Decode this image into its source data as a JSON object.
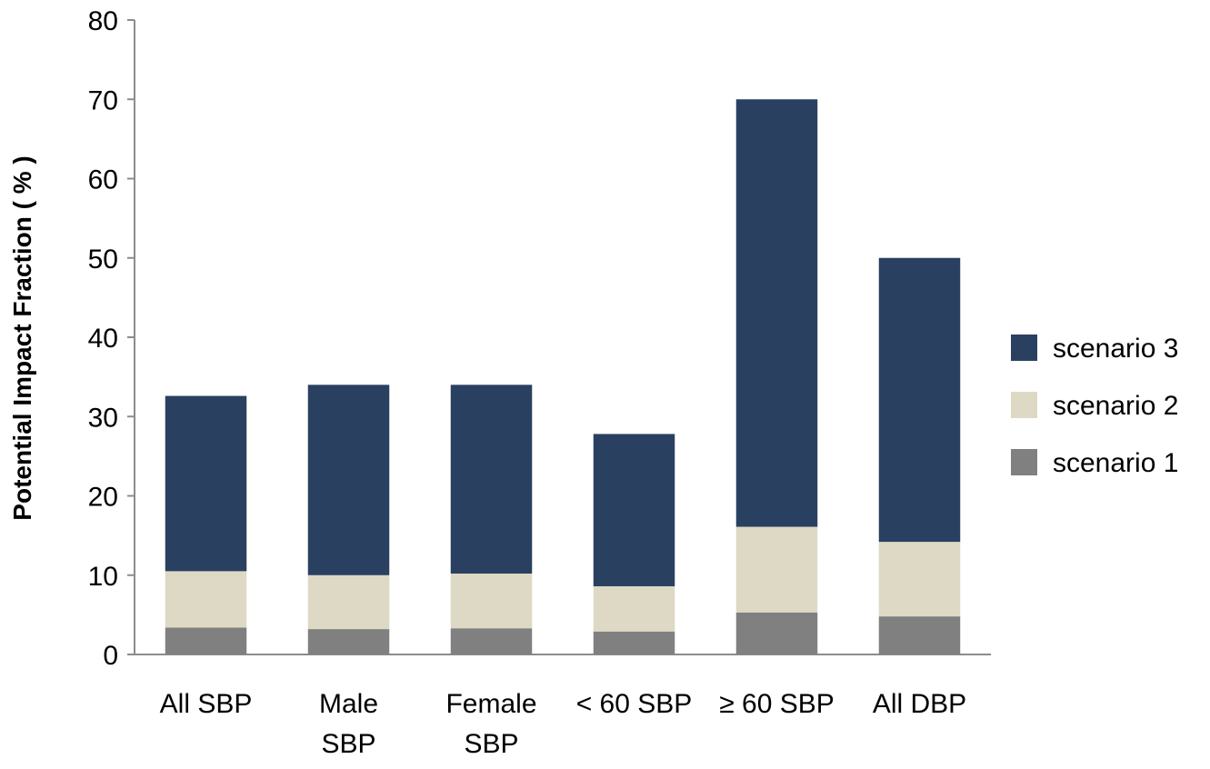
{
  "chart_data": {
    "type": "bar",
    "stacked": true,
    "title": "",
    "xlabel": "",
    "ylabel": "Potential Impact Fraction ( % )",
    "ylim": [
      0,
      80
    ],
    "yticks": [
      0,
      10,
      20,
      30,
      40,
      50,
      60,
      70,
      80
    ],
    "grid": false,
    "legend_position": "right",
    "categories": [
      [
        "All SBP"
      ],
      [
        "Male",
        "SBP"
      ],
      [
        "Female",
        "SBP"
      ],
      [
        "< 60 SBP"
      ],
      [
        "≥ 60 SBP"
      ],
      [
        "All DBP"
      ]
    ],
    "series": [
      {
        "name": "scenario 1",
        "color": "#808080",
        "values": [
          3.4,
          3.2,
          3.3,
          2.9,
          5.3,
          4.8
        ]
      },
      {
        "name": "scenario 2",
        "color": "#DDD9C4",
        "values": [
          7.1,
          6.8,
          6.9,
          5.7,
          10.8,
          9.4
        ]
      },
      {
        "name": "scenario 3",
        "color": "#2A4060",
        "values": [
          22.1,
          24.0,
          23.8,
          19.2,
          53.9,
          35.8
        ]
      }
    ],
    "legend_order": [
      "scenario 3",
      "scenario 2",
      "scenario 1"
    ]
  }
}
